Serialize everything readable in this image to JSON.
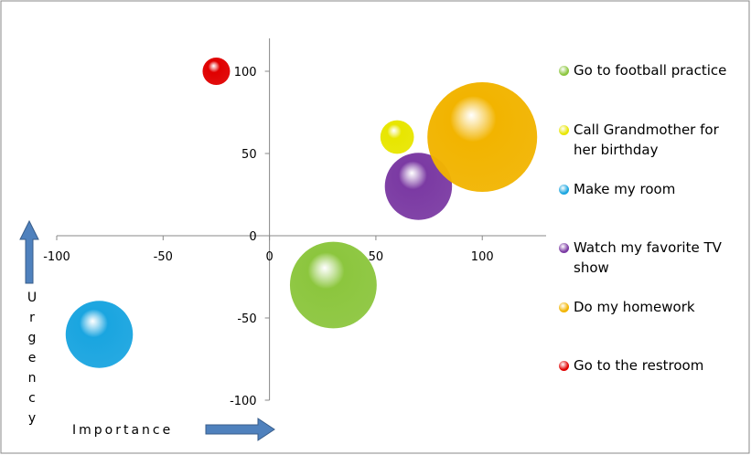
{
  "chart_data": {
    "type": "bubble",
    "x_label": "Importance",
    "y_label": "Urgency",
    "xlim": [
      -100,
      130
    ],
    "ylim": [
      -100,
      120
    ],
    "xticks": [
      -100,
      -50,
      0,
      50,
      100
    ],
    "yticks": [
      -100,
      -50,
      0,
      50,
      100
    ],
    "series": [
      {
        "name": "Go to football practice",
        "color": "#8cc63e",
        "x": [
          30
        ],
        "values": [
          -30
        ],
        "sizes": [
          10
        ]
      },
      {
        "name": "Call Grandmother for her birthday",
        "color": "#e8e600",
        "x": [
          60
        ],
        "values": [
          60
        ],
        "sizes": [
          1.5
        ]
      },
      {
        "name": "Make my room",
        "color": "#1aa5e0",
        "x": [
          -80
        ],
        "values": [
          -60
        ],
        "sizes": [
          6
        ]
      },
      {
        "name": "Watch my favorite TV show",
        "color": "#7b3aa3",
        "x": [
          70
        ],
        "values": [
          30
        ],
        "sizes": [
          6
        ]
      },
      {
        "name": "Do my homework",
        "color": "#f2b400",
        "x": [
          100
        ],
        "values": [
          60
        ],
        "sizes": [
          16
        ]
      },
      {
        "name": "Go to the restroom",
        "color": "#e00000",
        "x": [
          -25
        ],
        "values": [
          100
        ],
        "sizes": [
          1
        ]
      }
    ]
  }
}
